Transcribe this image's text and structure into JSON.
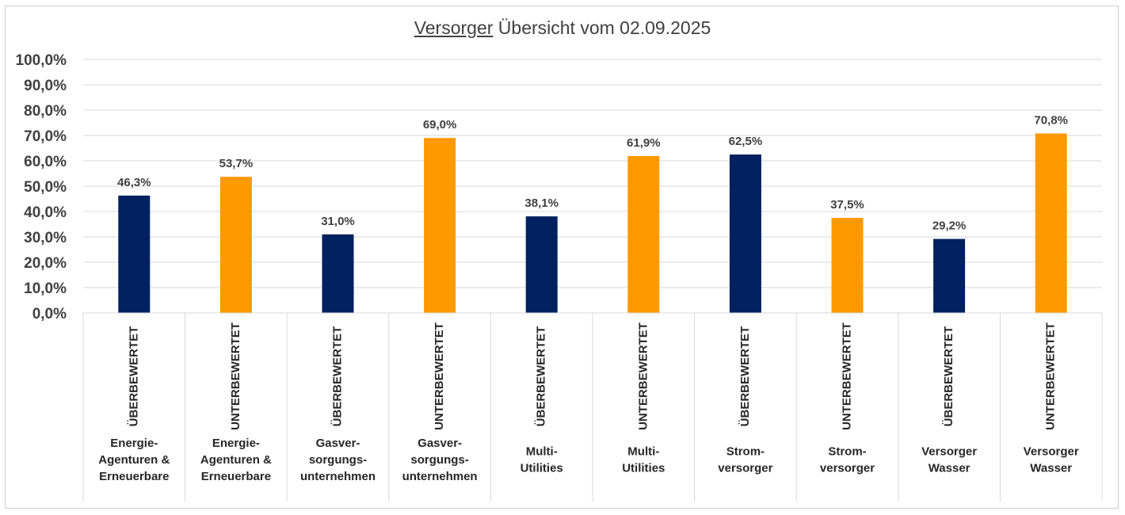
{
  "title": {
    "underlined": "Versorger",
    "rest": " Übersicht vom 02.09.2025"
  },
  "colors": {
    "ueberbewertet": "#002060",
    "unterbewertet": "#ff9900",
    "grid": "#d9d9d9",
    "text": "#404040"
  },
  "chart_data": {
    "type": "bar",
    "title": "Versorger Übersicht vom 02.09.2025",
    "ylim": [
      0,
      100
    ],
    "yticks": [
      "0,0%",
      "10,0%",
      "20,0%",
      "30,0%",
      "40,0%",
      "50,0%",
      "60,0%",
      "70,0%",
      "80,0%",
      "90,0%",
      "100,0%"
    ],
    "grid": true,
    "bars": [
      {
        "group": "ÜBERBEWERTET",
        "category": [
          "Energie-",
          "Agenturen &",
          "Erneuerbare"
        ],
        "value": 46.3,
        "label": "46,3%",
        "color": "#002060"
      },
      {
        "group": "UNTERBEWERTET",
        "category": [
          "Energie-",
          "Agenturen &",
          "Erneuerbare"
        ],
        "value": 53.7,
        "label": "53,7%",
        "color": "#ff9900"
      },
      {
        "group": "ÜBERBEWERTET",
        "category": [
          "Gasver-",
          "sorgungs-",
          "unternehmen"
        ],
        "value": 31.0,
        "label": "31,0%",
        "color": "#002060"
      },
      {
        "group": "UNTERBEWERTET",
        "category": [
          "Gasver-",
          "sorgungs-",
          "unternehmen"
        ],
        "value": 69.0,
        "label": "69,0%",
        "color": "#ff9900"
      },
      {
        "group": "ÜBERBEWERTET",
        "category": [
          "Multi-",
          "Utilities"
        ],
        "value": 38.1,
        "label": "38,1%",
        "color": "#002060"
      },
      {
        "group": "UNTERBEWERTET",
        "category": [
          "Multi-",
          "Utilities"
        ],
        "value": 61.9,
        "label": "61,9%",
        "color": "#ff9900"
      },
      {
        "group": "ÜBERBEWERTET",
        "category": [
          "Strom-",
          "versorger"
        ],
        "value": 62.5,
        "label": "62,5%",
        "color": "#002060"
      },
      {
        "group": "UNTERBEWERTET",
        "category": [
          "Strom-",
          "versorger"
        ],
        "value": 37.5,
        "label": "37,5%",
        "color": "#ff9900"
      },
      {
        "group": "ÜBERBEWERTET",
        "category": [
          "Versorger",
          "Wasser"
        ],
        "value": 29.2,
        "label": "29,2%",
        "color": "#002060"
      },
      {
        "group": "UNTERBEWERTET",
        "category": [
          "Versorger",
          "Wasser"
        ],
        "value": 70.8,
        "label": "70,8%",
        "color": "#ff9900"
      }
    ]
  }
}
